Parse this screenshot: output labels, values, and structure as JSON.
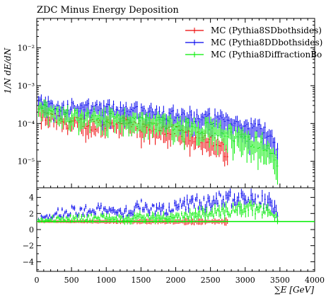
{
  "chart_data": {
    "type": "line",
    "title": "ZDC Minus Energy Deposition",
    "xlabel": "∑E [GeV]",
    "ylabel": "1/N dE/dN",
    "xlim": [
      0,
      4000
    ],
    "xticks": [
      "0",
      "500",
      "1000",
      "1500",
      "2000",
      "2500",
      "3000",
      "3500",
      "4000"
    ],
    "bin_width": 20,
    "main_panel": {
      "yscale": "log",
      "ylim": [
        2e-06,
        0.06
      ],
      "ytick_values": [
        1e-05,
        0.0001,
        0.001,
        0.01
      ],
      "ytick_labels": [
        "10⁻⁵",
        "10⁻⁴",
        "10⁻³",
        "10⁻²"
      ],
      "legend_position": "top-right"
    },
    "ratio_panel": {
      "ylim": [
        -5.2,
        5.2
      ],
      "ytick_values": [
        -4,
        -2,
        0,
        2,
        4
      ],
      "ytick_labels": [
        "−4",
        "−2",
        "0",
        "2",
        "4"
      ],
      "reference_line": 1
    },
    "series": [
      {
        "name": "MC (Pythia8SDbothsides)",
        "color": "#ee0000",
        "x": [
          25,
          125,
          250,
          375,
          500,
          625,
          750,
          875,
          1000,
          1125,
          1250,
          1375,
          1500,
          1625,
          1750,
          1875,
          2000,
          2125,
          2250,
          2500,
          2625,
          2750
        ],
        "y": [
          0.00022,
          0.00015,
          0.00014,
          0.00012,
          0.00011,
          0.00011,
          0.0001,
          0.00011,
          0.0001,
          0.00012,
          0.00012,
          9e-05,
          7e-05,
          8e-05,
          8e-05,
          7.5e-05,
          6.5e-05,
          5e-05,
          4.5e-05,
          4.5e-05,
          3e-05,
          1.5e-05
        ],
        "ratio_y": [
          1,
          1,
          1,
          1,
          1,
          1,
          1,
          1,
          1,
          1,
          1,
          1,
          1,
          1,
          1,
          1,
          1,
          1,
          1,
          1,
          1,
          1
        ]
      },
      {
        "name": "MC (Pythia8DDbothsides)",
        "color": "#0000ee",
        "x": [
          25,
          125,
          250,
          375,
          500,
          625,
          750,
          875,
          1000,
          1125,
          1250,
          1375,
          1500,
          1625,
          1750,
          1875,
          2000,
          2125,
          2250,
          2375,
          2500,
          2625,
          2750,
          2875,
          3000,
          3125,
          3250,
          3375,
          3475
        ],
        "y": [
          0.00038,
          0.0003,
          0.00027,
          0.00026,
          0.00027,
          0.00024,
          0.00025,
          0.00026,
          0.00024,
          0.00025,
          0.00024,
          0.00022,
          0.00022,
          0.0002,
          0.0002,
          0.00018,
          0.00018,
          0.00016,
          0.00015,
          0.00014,
          0.00014,
          0.00012,
          0.00011,
          9e-05,
          8e-05,
          8e-05,
          7e-05,
          5e-05,
          1.5e-05
        ],
        "ratio_y": [
          1.3,
          1.6,
          2.0,
          2.2,
          2.4,
          2.2,
          2.5,
          2.4,
          2.4,
          2.1,
          2.0,
          2.4,
          3.1,
          2.5,
          2.5,
          2.4,
          2.8,
          3.2,
          3.3,
          3.3,
          3.1,
          4.0,
          4.0,
          3.5,
          3.8,
          3.6,
          3.4,
          3.0,
          2.0
        ]
      },
      {
        "name": "MC (Pythia8DiffractionBo",
        "color": "#00ee00",
        "x": [
          25,
          125,
          250,
          375,
          500,
          625,
          750,
          875,
          1000,
          1125,
          1250,
          1375,
          1500,
          1625,
          1750,
          1875,
          2000,
          2125,
          2250,
          2375,
          2500,
          2625,
          2750,
          2875,
          3000,
          3125,
          3250,
          3375,
          3475
        ],
        "y": [
          0.0003,
          0.00024,
          0.0002,
          0.00018,
          0.00017,
          0.00016,
          0.00016,
          0.00017,
          0.00015,
          0.00016,
          0.00015,
          0.00013,
          0.00012,
          0.00012,
          0.00011,
          0.00011,
          0.0001,
          9e-05,
          9e-05,
          8e-05,
          8e-05,
          7e-05,
          6e-05,
          5e-05,
          4e-05,
          3.5e-05,
          3e-05,
          2e-05,
          8e-06
        ],
        "ratio_y": [
          1.1,
          1.3,
          1.3,
          1.4,
          1.4,
          1.4,
          1.5,
          1.5,
          1.4,
          1.4,
          1.3,
          1.4,
          1.6,
          1.5,
          1.5,
          1.5,
          1.6,
          1.7,
          1.8,
          1.9,
          2.0,
          2.2,
          2.3,
          2.5,
          2.8,
          2.6,
          2.4,
          2.0,
          1.3
        ]
      }
    ]
  }
}
